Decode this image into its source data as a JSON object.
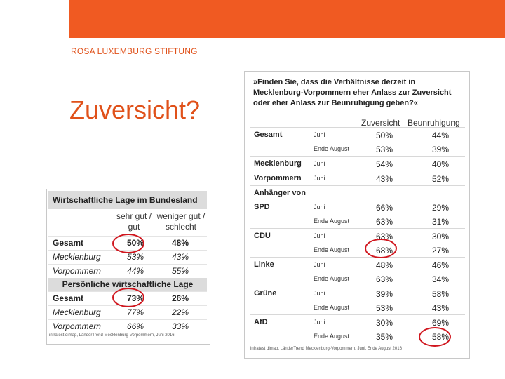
{
  "header": {
    "brand": "ROSA LUXEMBURG STIFTUNG",
    "title": "Zuversicht?"
  },
  "left_table": {
    "title": "Wirtschaftliche Lage im Bundesland",
    "col1": "sehr gut / gut",
    "col2": "weniger gut / schlecht",
    "rows": [
      {
        "label": "Gesamt",
        "v1": "50%",
        "v2": "48%"
      },
      {
        "label": "Mecklenburg",
        "v1": "53%",
        "v2": "43%"
      },
      {
        "label": "Vorpommern",
        "v1": "44%",
        "v2": "55%"
      }
    ],
    "subtitle": "Persönliche wirtschaftliche Lage",
    "rows2": [
      {
        "label": "Gesamt",
        "v1": "73%",
        "v2": "26%"
      },
      {
        "label": "Mecklenburg",
        "v1": "77%",
        "v2": "22%"
      },
      {
        "label": "Vorpommern",
        "v1": "66%",
        "v2": "33%"
      }
    ],
    "source": "infratest dimap, LänderTrend Mecklenburg-Vorpommern, Juni 2016"
  },
  "right_table": {
    "question": "»Finden Sie, dass die Verhältnisse derzeit in Mecklenburg-Vorpommern eher Anlass zur Zuversicht oder eher Anlass zur Beunruhigung geben?«",
    "col_z": "Zuversicht",
    "col_b": "Beunruhigung",
    "groups": [
      {
        "label": "Gesamt",
        "rows": [
          {
            "sub": "Juni",
            "z": "50%",
            "b": "44%"
          },
          {
            "sub": "Ende August",
            "z": "53%",
            "b": "39%"
          }
        ]
      },
      {
        "label": "Mecklenburg",
        "rows": [
          {
            "sub": "Juni",
            "z": "54%",
            "b": "40%"
          }
        ]
      },
      {
        "label": "Vorpommern",
        "rows": [
          {
            "sub": "Juni",
            "z": "43%",
            "b": "52%"
          }
        ]
      },
      {
        "label": "Anhänger von",
        "rows": []
      },
      {
        "label": "SPD",
        "rows": [
          {
            "sub": "Juni",
            "z": "66%",
            "b": "29%"
          },
          {
            "sub": "Ende August",
            "z": "63%",
            "b": "31%"
          }
        ]
      },
      {
        "label": "CDU",
        "rows": [
          {
            "sub": "Juni",
            "z": "63%",
            "b": "30%"
          },
          {
            "sub": "Ende August",
            "z": "68%",
            "b": "27%"
          }
        ]
      },
      {
        "label": "Linke",
        "rows": [
          {
            "sub": "Juni",
            "z": "48%",
            "b": "46%"
          },
          {
            "sub": "Ende August",
            "z": "63%",
            "b": "34%"
          }
        ]
      },
      {
        "label": "Grüne",
        "rows": [
          {
            "sub": "Juni",
            "z": "39%",
            "b": "58%"
          },
          {
            "sub": "Ende August",
            "z": "53%",
            "b": "43%"
          }
        ]
      },
      {
        "label": "AfD",
        "rows": [
          {
            "sub": "Juni",
            "z": "30%",
            "b": "69%"
          },
          {
            "sub": "Ende August",
            "z": "35%",
            "b": "58%"
          }
        ]
      }
    ],
    "source": "infratest dimap, LänderTrend Mecklenburg-Vorpommern, Juni, Ende August 2016"
  },
  "colors": {
    "accent": "#f05a22",
    "highlight": "#d0161e"
  }
}
